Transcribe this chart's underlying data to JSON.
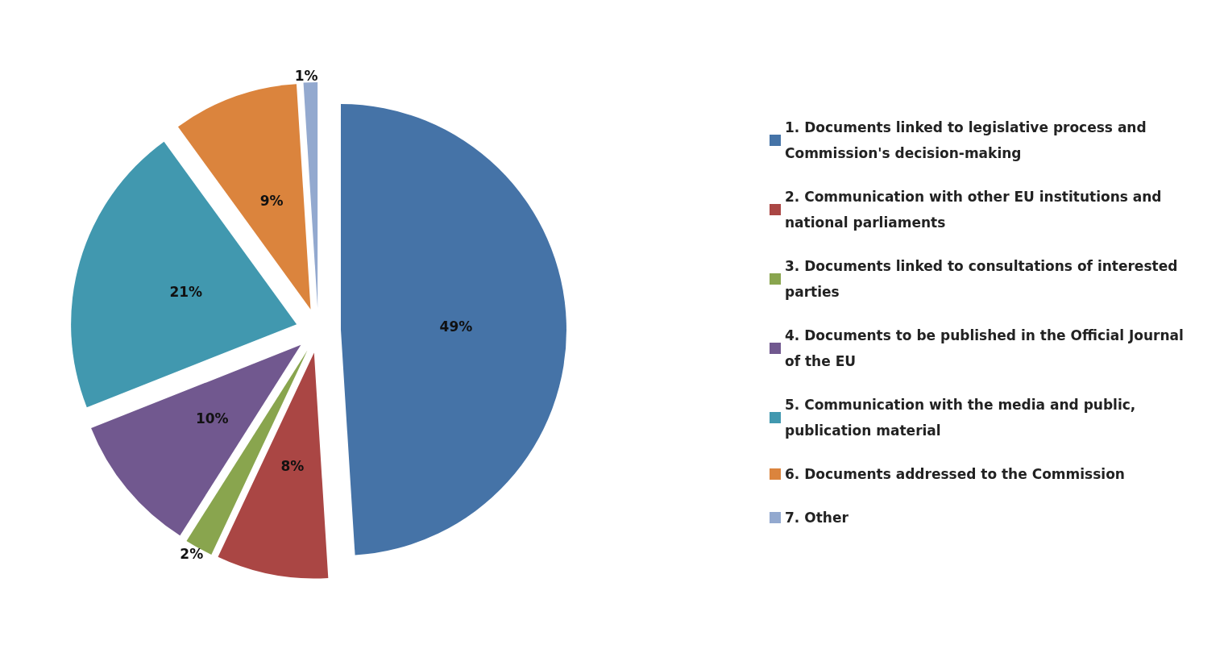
{
  "chart_data": {
    "type": "pie",
    "categories": [
      "1. Documents linked to legislative process and Commission's decision-making",
      "2. Communication with other EU institutions and national parliaments",
      "3. Documents linked to consultations of interested parties",
      "4. Documents to be published in the Official Journal of the EU",
      "5. Communication with the media and public, publication material",
      "6. Documents addressed to the Commission",
      "7. Other"
    ],
    "values": [
      49,
      8,
      2,
      10,
      21,
      9,
      1
    ],
    "value_labels": [
      "49%",
      "8%",
      "2%",
      "10%",
      "21%",
      "9%",
      "1%"
    ],
    "colors": [
      "#4573a7",
      "#aa4644",
      "#89a54e",
      "#71588f",
      "#4198af",
      "#db843d",
      "#93a9cf"
    ],
    "legend": "right"
  }
}
